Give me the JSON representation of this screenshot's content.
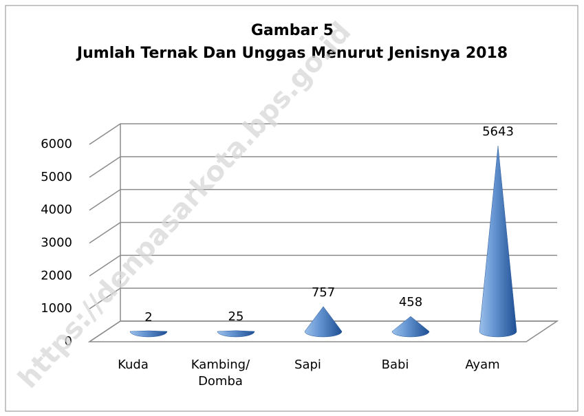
{
  "chart_data": {
    "type": "cone3d",
    "title": "Gambar 5",
    "subtitle": "Jumlah Ternak Dan Unggas Menurut Jenisnya 2018",
    "watermark": "https://denpasarkota.bps.go.id",
    "categories": [
      "Kuda",
      "Kambing/ Domba",
      "Sapi",
      "Babi",
      "Ayam"
    ],
    "values": [
      2,
      25,
      757,
      458,
      5643
    ],
    "color": "#4a7ec4",
    "ylim": [
      0,
      6000
    ],
    "yticks": [
      0,
      1000,
      2000,
      3000,
      4000,
      5000,
      6000
    ],
    "grid": true
  }
}
